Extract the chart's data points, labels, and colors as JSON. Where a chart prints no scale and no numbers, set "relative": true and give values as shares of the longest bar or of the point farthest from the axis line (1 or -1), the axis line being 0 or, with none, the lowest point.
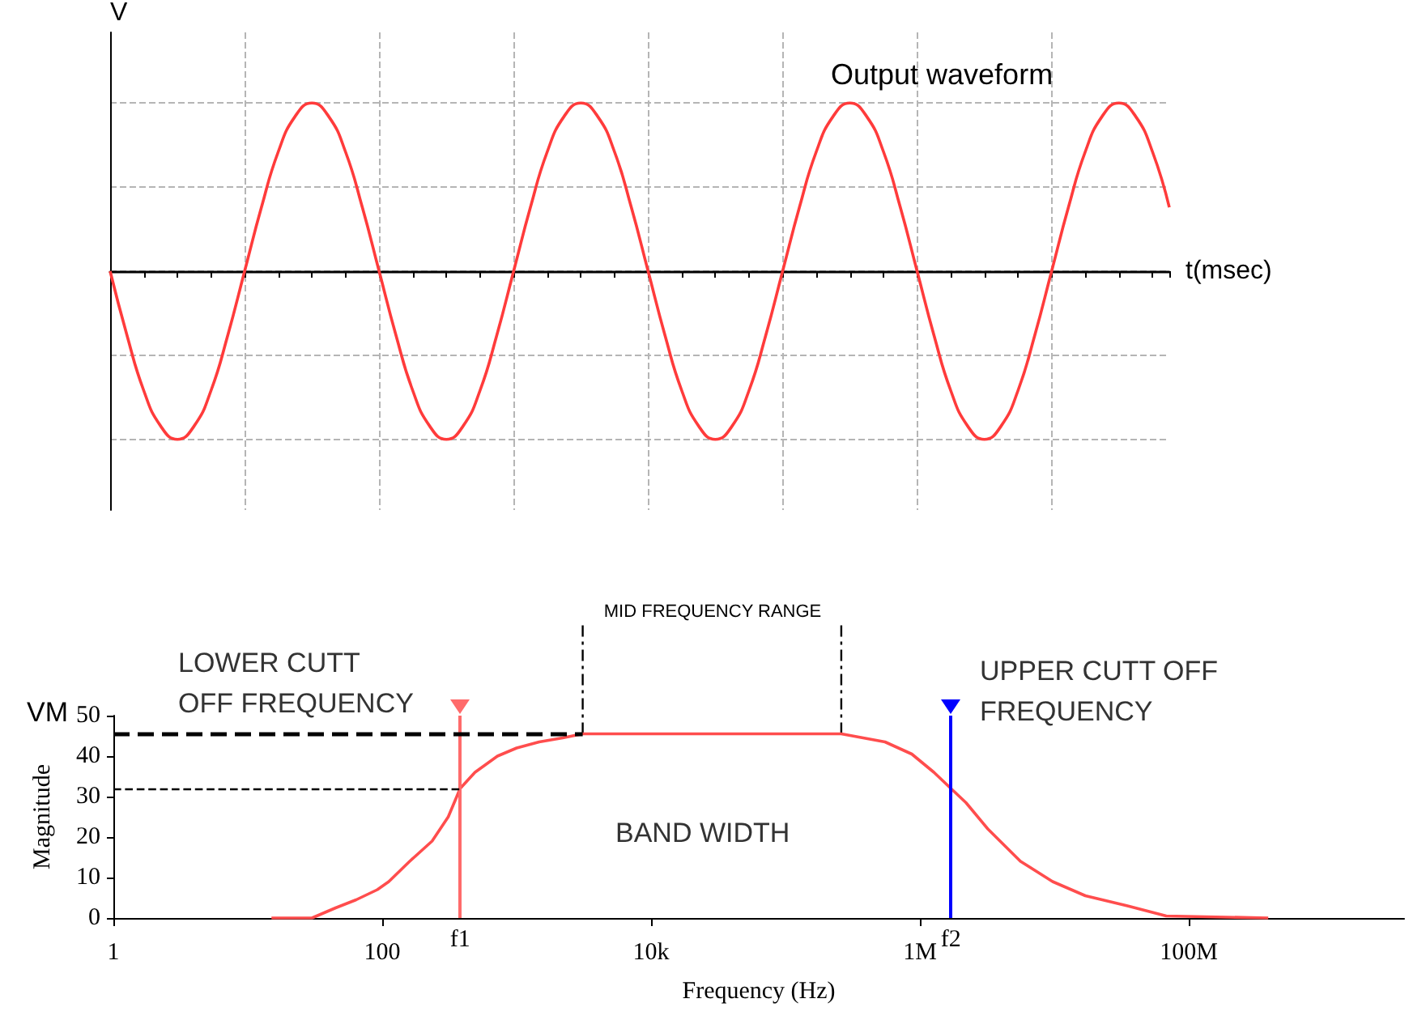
{
  "chart_data": [
    {
      "type": "line",
      "title": "Output waveform",
      "xlabel": "t(msec)",
      "ylabel": "V",
      "relative": true,
      "grid": true,
      "color": "#ff3b3b",
      "categories": [
        null,
        null,
        null,
        null,
        null,
        null,
        null,
        null,
        null,
        null,
        null,
        null,
        null,
        null,
        null,
        null,
        null,
        null,
        null,
        null,
        null,
        null,
        null,
        null,
        null,
        null,
        null,
        null,
        null,
        null,
        null,
        null,
        null,
        null,
        null,
        null,
        null,
        null,
        null,
        null,
        null,
        null,
        null,
        null,
        null,
        null,
        null,
        null,
        null,
        null,
        null,
        null,
        null,
        null,
        null,
        null,
        null,
        null,
        null,
        null,
        null,
        null,
        null,
        null
      ],
      "values": [
        0,
        -0.38,
        -0.71,
        -0.92,
        -1,
        -0.92,
        -0.71,
        -0.38,
        0,
        0.38,
        0.71,
        0.92,
        1,
        0.92,
        0.71,
        0.38,
        0,
        -0.38,
        -0.71,
        -0.92,
        -1,
        -0.92,
        -0.71,
        -0.38,
        0,
        0.38,
        0.71,
        0.92,
        1,
        0.92,
        0.71,
        0.38,
        0,
        -0.38,
        -0.71,
        -0.92,
        -1,
        -0.92,
        -0.71,
        -0.38,
        0,
        0.38,
        0.71,
        0.92,
        1,
        0.92,
        0.71,
        0.38,
        0,
        -0.38,
        -0.71,
        -0.92,
        -1,
        -0.92,
        -0.71,
        -0.38,
        0,
        0.38,
        0.71,
        0.92,
        1,
        0.92,
        0.71,
        0.38
      ]
    },
    {
      "type": "line",
      "xlabel": "Frequency (Hz)",
      "ylabel": "Magnitude",
      "color": "#ff4d4d",
      "log": "x",
      "x": [
        15,
        30,
        45,
        64,
        92,
        112,
        160,
        235,
        310,
        380,
        490,
        720,
        1000,
        1470,
        2200,
        3100,
        10000,
        100000,
        260000,
        550000,
        870000,
        1270000,
        1700000,
        2200000,
        3200000,
        5600000,
        9700000,
        17000000,
        35000000,
        68000000,
        390000000
      ],
      "values": [
        0,
        0,
        2.5,
        4.5,
        7,
        9,
        14,
        19,
        25,
        32,
        36,
        40,
        42,
        43.5,
        44.5,
        45.5,
        45.5,
        45.5,
        45.5,
        43.5,
        40.5,
        36,
        32,
        28.5,
        22,
        14,
        9,
        5.5,
        3,
        0.5,
        0
      ],
      "xlim": [
        1,
        4000000000
      ],
      "ylim": [
        0,
        50
      ],
      "xticks": [
        1,
        100,
        {
          "value": 10000,
          "label": "10k"
        },
        {
          "value": 1000000,
          "label": "1M"
        },
        {
          "value": 100000000,
          "label": "100M"
        }
      ],
      "yticks": [
        0,
        10,
        20,
        30,
        40,
        50
      ],
      "ref_lines": [
        {
          "axis": "x",
          "value": 380,
          "label": "f1",
          "color": "#ff6b6b"
        },
        {
          "axis": "x",
          "value": 1700000,
          "label": "f2",
          "color": "#0000ff"
        },
        {
          "axis": "x",
          "value": 3100,
          "color": "#000000",
          "line_style": "dashed"
        },
        {
          "axis": "x",
          "value": 260000,
          "color": "#000000",
          "line_style": "dashed"
        },
        {
          "axis": "y",
          "value": 45.5,
          "label": "VM",
          "color": "#000000",
          "line_style": "dashed"
        },
        {
          "axis": "y",
          "value": 32,
          "color": "#000000",
          "line_style": "dashed"
        }
      ],
      "annotations": [
        "MID FREQUENCY RANGE",
        "LOWER CUTT\nOFF FREQUENCY",
        "UPPER CUTT OFF\nFREQUENCY",
        "BAND WIDTH"
      ]
    }
  ]
}
